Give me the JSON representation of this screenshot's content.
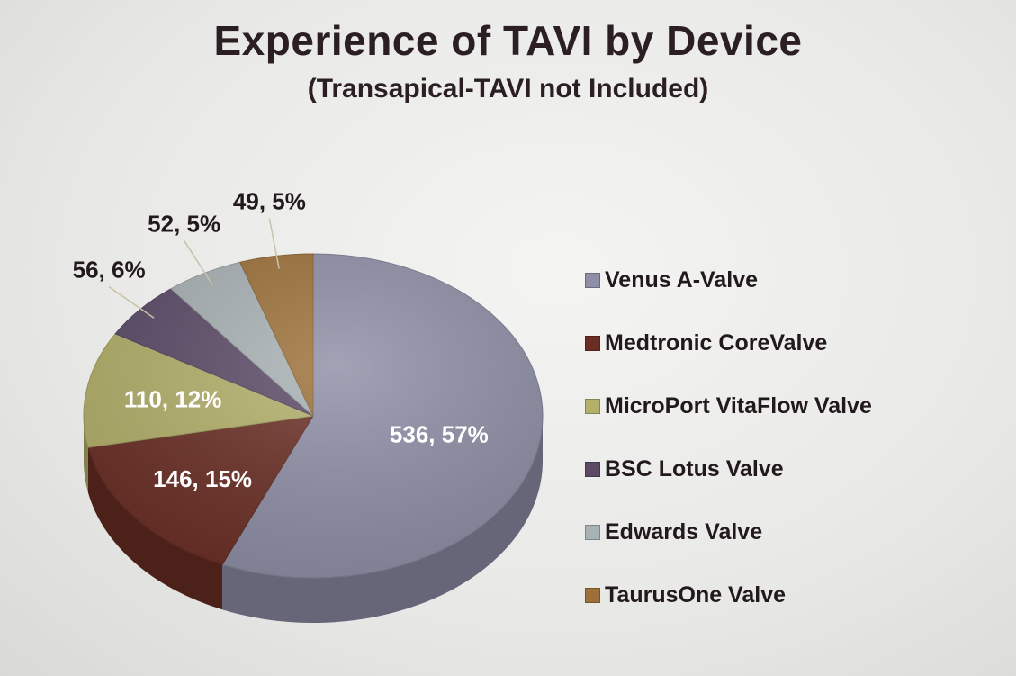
{
  "chart_data": {
    "type": "pie",
    "title": "Experience of TAVI by Device",
    "subtitle": "(Transapical-TAVI not Included)",
    "slices": [
      {
        "name": "Venus A-Valve",
        "value": 536,
        "percent": "57%",
        "label": "536, 57%",
        "color": "#8e8ea6"
      },
      {
        "name": "Medtronic CoreValve",
        "value": 146,
        "percent": "15%",
        "label": "146, 15%",
        "color": "#6a2e24"
      },
      {
        "name": "MicroPort VitaFlow Valve",
        "value": 110,
        "percent": "12%",
        "label": "110, 12%",
        "color": "#b3b06a"
      },
      {
        "name": "BSC Lotus Valve",
        "value": 56,
        "percent": "6%",
        "label": "56, 6%",
        "color": "#5a4a66"
      },
      {
        "name": "Edwards Valve",
        "value": 52,
        "percent": "5%",
        "label": "52, 5%",
        "color": "#a8b1b4"
      },
      {
        "name": "TaurusOne Valve",
        "value": 49,
        "percent": "5%",
        "label": "49, 5%",
        "color": "#9c7038"
      }
    ],
    "legend_position": "right"
  }
}
